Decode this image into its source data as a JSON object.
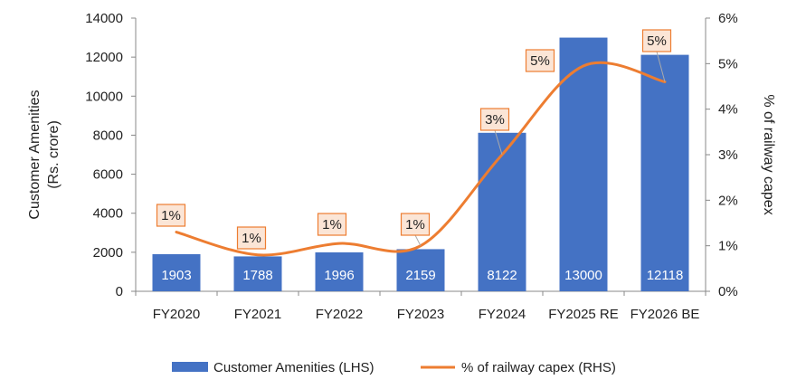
{
  "chart_data": {
    "type": "bar",
    "categories": [
      "FY2020",
      "FY2021",
      "FY2022",
      "FY2023",
      "FY2024",
      "FY2025 RE",
      "FY2026 BE"
    ],
    "series": [
      {
        "name": "Customer Amenities (LHS)",
        "type": "bar",
        "axis": "left",
        "color": "#4472C4",
        "values": [
          1903,
          1788,
          1996,
          2159,
          8122,
          13000,
          12118
        ],
        "data_labels": [
          "1903",
          "1788",
          "1996",
          "2159",
          "8122",
          "13000",
          "12118"
        ]
      },
      {
        "name": "% of railway capex (RHS)",
        "type": "line",
        "axis": "right",
        "color": "#ED7D31",
        "values": [
          1.3,
          0.8,
          1.05,
          1.0,
          3.0,
          4.95,
          4.6
        ],
        "data_labels": [
          "1%",
          "1%",
          "1%",
          "1%",
          "3%",
          "5%",
          "5%"
        ]
      }
    ],
    "ylabel": "Customer Amenities\n(Rs. crore)",
    "y2label": "% of railway capex",
    "ylim": [
      0,
      14000
    ],
    "yticks": [
      0,
      2000,
      4000,
      6000,
      8000,
      10000,
      12000,
      14000
    ],
    "ytick_labels": [
      "0",
      "2000",
      "4000",
      "6000",
      "8000",
      "10000",
      "12000",
      "14000"
    ],
    "y2lim": [
      0,
      6
    ],
    "y2ticks": [
      0,
      1,
      2,
      3,
      4,
      5,
      6
    ],
    "y2tick_labels": [
      "0%",
      "1%",
      "2%",
      "3%",
      "4%",
      "5%",
      "6%"
    ],
    "grid": false,
    "legend_position": "bottom"
  },
  "colors": {
    "bar": "#4472C4",
    "line": "#ED7D31",
    "callout_fill": "#FBE5D6",
    "callout_border": "#ED7D31",
    "axis": "#888888",
    "leader": "#AAAAAA"
  }
}
